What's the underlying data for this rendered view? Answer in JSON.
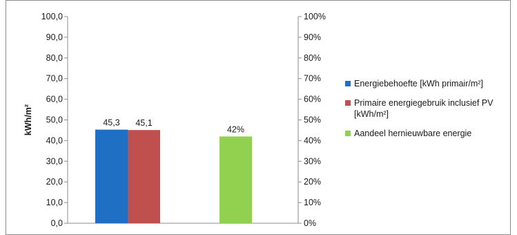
{
  "chart_data": {
    "type": "bar",
    "ylabel": "kWh/m²",
    "ylim": [
      0,
      100
    ],
    "y_ticks": [
      "100,0",
      "90,0",
      "80,0",
      "70,0",
      "60,0",
      "50,0",
      "40,0",
      "30,0",
      "20,0",
      "10,0",
      "0,0"
    ],
    "y2lim": [
      0,
      100
    ],
    "y2_ticks": [
      "100%",
      "90%",
      "80%",
      "70%",
      "60%",
      "50%",
      "40%",
      "30%",
      "20%",
      "10%",
      "0%"
    ],
    "series": [
      {
        "name": "Energiebehoefte [kWh primair/m²]",
        "color": "#1f6fc5",
        "value": 45.3,
        "label": "45,3",
        "axis": "left"
      },
      {
        "name": "Primaire energiegebruik inclusief PV [kWh/m²]",
        "color": "#c0504d",
        "value": 45.1,
        "label": "45,1",
        "axis": "left"
      },
      {
        "name": "Aandeel hernieuwbare energie",
        "color": "#92d050",
        "value": 42,
        "label": "42%",
        "axis": "right"
      }
    ],
    "legend_position": "right",
    "grid": false
  }
}
